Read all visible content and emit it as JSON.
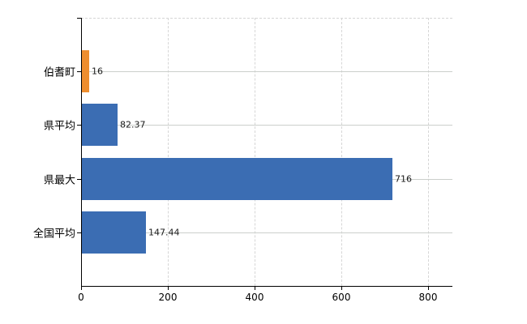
{
  "chart_data": {
    "type": "bar",
    "orientation": "horizontal",
    "title": "",
    "categories": [
      "伯耆町",
      "県平均",
      "県最大",
      "全国平均"
    ],
    "values": [
      16,
      82.37,
      716,
      147.44
    ],
    "value_labels": [
      "16",
      "82.37",
      "716",
      "147.44"
    ],
    "series": [
      {
        "name": "",
        "values": [
          16,
          82.37,
          716,
          147.44
        ]
      }
    ],
    "x_ticks": [
      0,
      200,
      400,
      600,
      800
    ],
    "x_tick_labels": [
      "0",
      "200",
      "400",
      "600",
      "800"
    ],
    "xlim": [
      0,
      856
    ],
    "grid": true,
    "legend": false,
    "bar_colors": [
      "#ee8e2f",
      "#3b6db3",
      "#3b6db3",
      "#3b6db3"
    ]
  },
  "colors": {
    "highlight_orange": "#ee8e2f",
    "bar_blue": "#3b6db3",
    "axis_black": "#000000",
    "grid_solid": "#cbcfcb",
    "grid_dashed": "#d6d6d6",
    "text": "#1a1a1a",
    "background": "#ffffff"
  }
}
